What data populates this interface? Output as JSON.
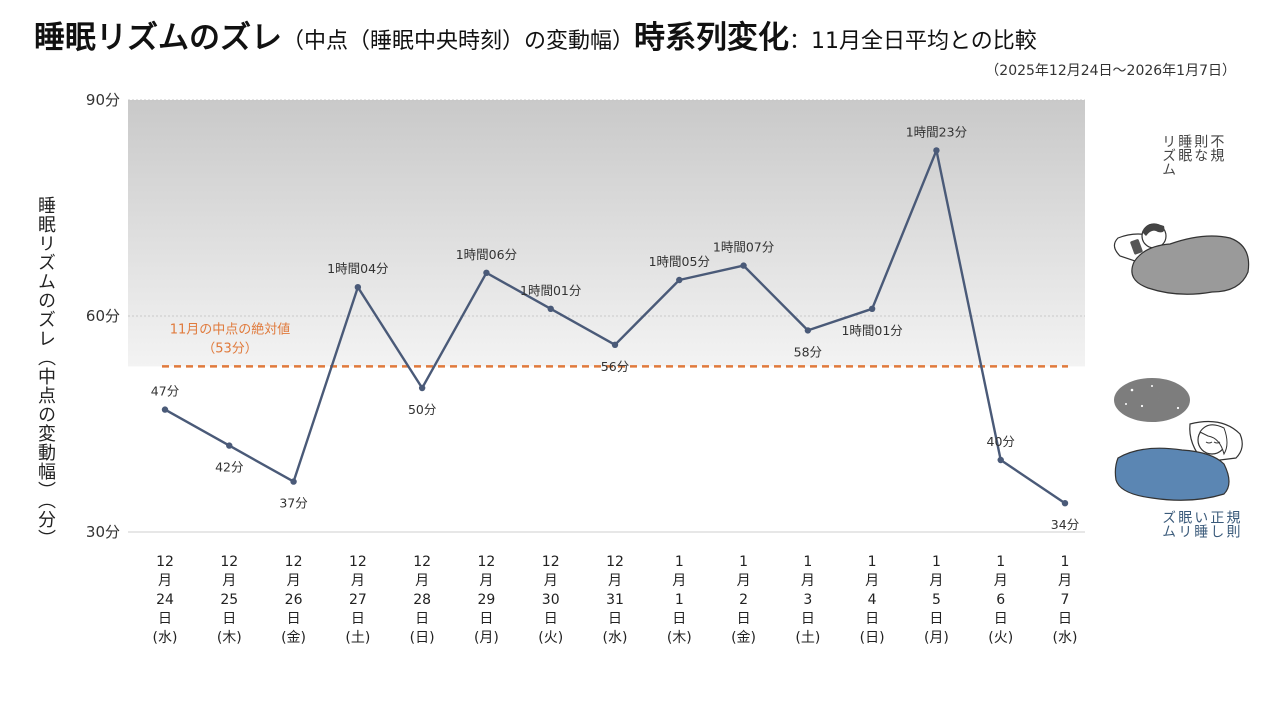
{
  "title": {
    "main": "睡眠リズムのズレ",
    "paren": "（中点（睡眠中央時刻）の変動幅）",
    "main2": "時系列変化",
    "sub": "：11月全日平均との比較"
  },
  "period": "（2025年12月24日～2026年1月7日）",
  "chart_data": {
    "type": "line",
    "ylabel": "睡眠リズムのズレ（中点の変動幅）（分）",
    "ylim": [
      30,
      90
    ],
    "yticks": [
      {
        "value": 90,
        "label": "90分"
      },
      {
        "value": 60,
        "label": "60分"
      },
      {
        "value": 30,
        "label": "30分"
      }
    ],
    "categories": [
      "12月24日(水)",
      "12月25日(木)",
      "12月26日(金)",
      "12月27日(土)",
      "12月28日(日)",
      "12月29日(月)",
      "12月30日(火)",
      "12月31日(水)",
      "1月1日(木)",
      "1月2日(金)",
      "1月3日(土)",
      "1月4日(日)",
      "1月5日(月)",
      "1月6日(火)",
      "1月7日(水)"
    ],
    "x_labels_vertical": [
      "12\n月\n24\n日\n(水)",
      "12\n月\n25\n日\n(木)",
      "12\n月\n26\n日\n(金)",
      "12\n月\n27\n日\n(土)",
      "12\n月\n28\n日\n(日)",
      "12\n月\n29\n日\n(月)",
      "12\n月\n30\n日\n(火)",
      "12\n月\n31\n日\n(水)",
      "1\n月\n1\n日\n(木)",
      "1\n月\n2\n日\n(金)",
      "1\n月\n3\n日\n(土)",
      "1\n月\n4\n日\n(日)",
      "1\n月\n5\n日\n(月)",
      "1\n月\n6\n日\n(火)",
      "1\n月\n7\n日\n(水)"
    ],
    "values": [
      47,
      42,
      37,
      64,
      50,
      66,
      61,
      56,
      65,
      67,
      58,
      61,
      83,
      40,
      34
    ],
    "data_labels": [
      "47分",
      "42分",
      "37分",
      "1時間04分",
      "50分",
      "1時間06分",
      "1時間01分",
      "56分",
      "1時間05分",
      "1時間07分",
      "58分",
      "1時間01分",
      "1時間23分",
      "40分",
      "34分"
    ],
    "label_position": [
      "above",
      "below",
      "below",
      "above",
      "below",
      "above",
      "above",
      "below",
      "above",
      "above",
      "below",
      "below",
      "above",
      "above",
      "below"
    ],
    "reference_line": {
      "value": 53,
      "label_line1": "11月の中点の絶対値",
      "label_line2": "（53分）",
      "color": "#e07a3c"
    },
    "shaded_region_above": 53,
    "line_color": "#4a5a78",
    "grid": true
  },
  "side": {
    "irregular": "不規\n則な\n睡眠\nリズム",
    "regular": "規則\n正し\nい睡\n眠リ\nズム",
    "irregular_words": "不規則な睡眠リズム",
    "regular_words": "規則正しい睡眠リズム"
  },
  "colors": {
    "line": "#4a5a78",
    "reference": "#e07a3c",
    "shade_top": "#c9c9c9",
    "shade_bottom": "#f3f3f3",
    "blanket_dark": "#9a9a9a",
    "blanket_blue": "#5b86b3"
  }
}
